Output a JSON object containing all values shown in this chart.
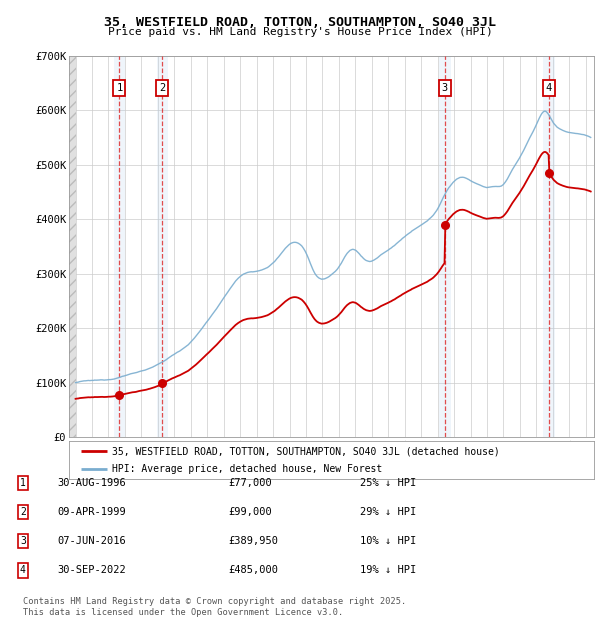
{
  "title": "35, WESTFIELD ROAD, TOTTON, SOUTHAMPTON, SO40 3JL",
  "subtitle": "Price paid vs. HM Land Registry's House Price Index (HPI)",
  "property_label": "35, WESTFIELD ROAD, TOTTON, SOUTHAMPTON, SO40 3JL (detached house)",
  "hpi_label": "HPI: Average price, detached house, New Forest",
  "property_color": "#cc0000",
  "hpi_color": "#7aadcf",
  "ylim": [
    0,
    700000
  ],
  "yticks": [
    0,
    100000,
    200000,
    300000,
    400000,
    500000,
    600000,
    700000
  ],
  "ytick_labels": [
    "£0",
    "£100K",
    "£200K",
    "£300K",
    "£400K",
    "£500K",
    "£600K",
    "£700K"
  ],
  "xlim_start": 1993.6,
  "xlim_end": 2025.5,
  "transactions": [
    {
      "num": 1,
      "date": "30-AUG-1996",
      "price": 77000,
      "year": 1996.66,
      "pct": "25% ↓ HPI"
    },
    {
      "num": 2,
      "date": "09-APR-1999",
      "price": 99000,
      "year": 1999.27,
      "pct": "29% ↓ HPI"
    },
    {
      "num": 3,
      "date": "07-JUN-2016",
      "price": 389950,
      "year": 2016.44,
      "pct": "10% ↓ HPI"
    },
    {
      "num": 4,
      "date": "30-SEP-2022",
      "price": 485000,
      "year": 2022.75,
      "pct": "19% ↓ HPI"
    }
  ],
  "footer": "Contains HM Land Registry data © Crown copyright and database right 2025.\nThis data is licensed under the Open Government Licence v3.0.",
  "bg_color": "#ffffff",
  "grid_color": "#cccccc",
  "hatch_region_end": 1994.0
}
